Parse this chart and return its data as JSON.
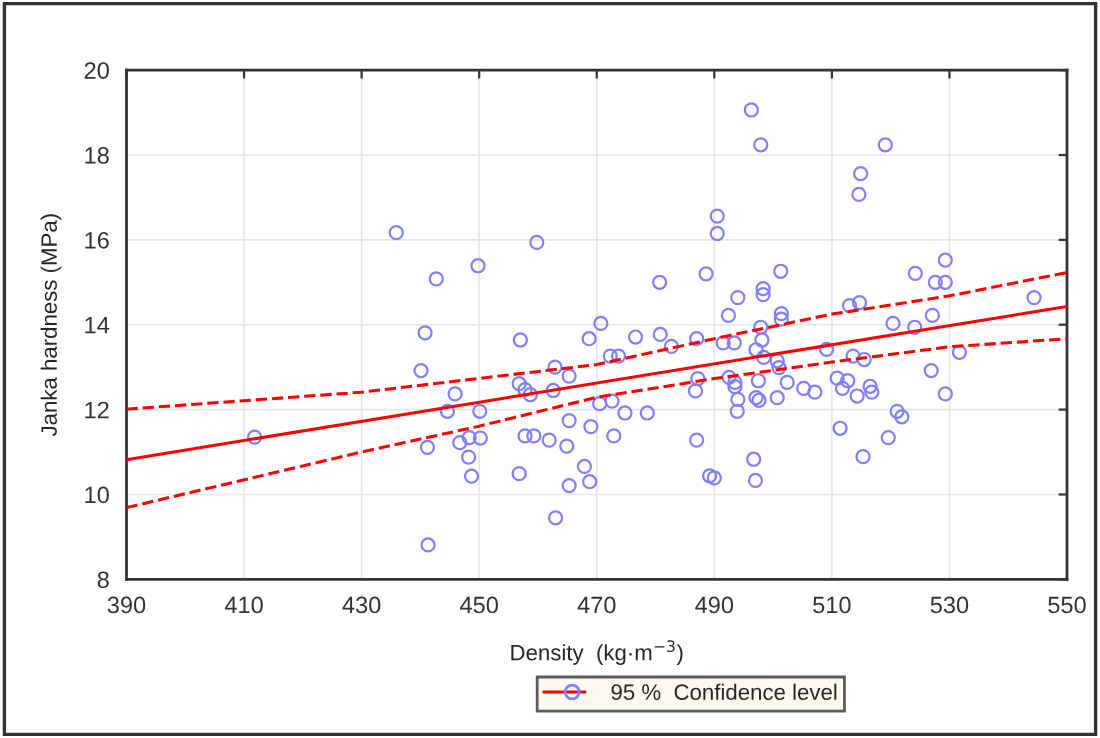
{
  "chart_data": {
    "type": "scatter",
    "xlabel": "Density  (kg·m$^{−3}$)",
    "ylabel": "Janka hardness (MPa)",
    "xlim": [
      390,
      550
    ],
    "xticks": [
      390,
      410,
      430,
      450,
      470,
      490,
      510,
      530,
      550
    ],
    "ylim": [
      8,
      20
    ],
    "yticks": [
      8,
      10,
      12,
      14,
      16,
      18,
      20
    ],
    "grid": true,
    "legend": "bottom",
    "series": [
      {
        "color": "#8080ff",
        "marker": "circle",
        "x": [
          435.9,
          459.8,
          449.8,
          442.7,
          440.8,
          457.0,
          440.1,
          462.9,
          465.3,
          468.7,
          456.8,
          457.8,
          458.7,
          462.6,
          445.9,
          444.6,
          450.1,
          411.8,
          441.2,
          446.7,
          448.3,
          450.2,
          457.8,
          459.3,
          461.9,
          464.9,
          465.3,
          469.0,
          448.2,
          448.7,
          456.8,
          467.9,
          465.3,
          463.0,
          441.3,
          496.3,
          497.9,
          519.1,
          514.9,
          514.6,
          490.5,
          490.5,
          488.6,
          480.7,
          501.3,
          494.0,
          498.3,
          498.3,
          529.3,
          524.2,
          527.6,
          529.3,
          544.4,
          513.0,
          514.7,
          492.4,
          501.4,
          501.4,
          527.1,
          520.4,
          524.1,
          470.7,
          476.6,
          480.8,
          482.7,
          487.0,
          491.5,
          493.4,
          497.9,
          498.1,
          497.1,
          472.3,
          473.7,
          498.4,
          500.7,
          501.0,
          509.1,
          513.6,
          515.5,
          531.7,
          526.9,
          487.2,
          486.8,
          492.5,
          493.5,
          493.5,
          497.5,
          502.4,
          505.2,
          507.1,
          510.9,
          512.7,
          511.8,
          516.5,
          516.8,
          514.3,
          529.3,
          470.5,
          472.6,
          494.0,
          497.1,
          497.6,
          500.7,
          474.8,
          478.6,
          493.9,
          472.9,
          487.0,
          511.4,
          521.1,
          521.9,
          519.6,
          515.3,
          468.8,
          489.2,
          490.0,
          496.7,
          497.0
        ],
        "values": [
          16.17,
          15.94,
          15.39,
          15.08,
          13.81,
          13.64,
          12.92,
          13.0,
          12.79,
          13.67,
          12.61,
          12.47,
          12.35,
          12.45,
          12.37,
          11.96,
          11.96,
          11.35,
          11.11,
          11.22,
          11.34,
          11.33,
          11.38,
          11.38,
          11.28,
          11.14,
          11.74,
          11.6,
          10.88,
          10.43,
          10.49,
          10.66,
          10.21,
          9.45,
          8.81,
          19.06,
          18.24,
          18.24,
          17.56,
          17.07,
          16.56,
          16.15,
          15.2,
          15.0,
          15.26,
          14.64,
          14.85,
          14.71,
          15.52,
          15.21,
          15.0,
          15.0,
          14.64,
          14.45,
          14.52,
          14.22,
          14.26,
          14.13,
          14.22,
          14.03,
          13.94,
          14.03,
          13.71,
          13.77,
          13.49,
          13.67,
          13.57,
          13.57,
          13.94,
          13.64,
          13.41,
          13.26,
          13.26,
          13.23,
          13.15,
          12.99,
          13.42,
          13.26,
          13.18,
          13.35,
          12.92,
          12.73,
          12.44,
          12.76,
          12.64,
          12.54,
          12.68,
          12.64,
          12.5,
          12.41,
          12.74,
          12.68,
          12.5,
          12.55,
          12.41,
          12.32,
          12.37,
          12.14,
          12.2,
          12.24,
          12.28,
          12.22,
          12.28,
          11.92,
          11.92,
          11.96,
          11.38,
          11.28,
          11.56,
          11.96,
          11.83,
          11.34,
          10.89,
          10.3,
          10.44,
          10.39,
          10.83,
          10.33
        ]
      },
      {
        "type": "line",
        "color": "#ff0000",
        "line_style": "solid",
        "x": [
          390,
          550
        ],
        "values": [
          10.82,
          14.43
        ]
      },
      {
        "type": "line",
        "color": "#ff0000",
        "line_style": "dashed",
        "name": "95 %  Confidence level",
        "x": [
          390,
          430,
          470,
          490,
          510,
          530,
          550
        ],
        "values": [
          12.01,
          12.41,
          13.06,
          13.67,
          14.25,
          14.68,
          15.23
        ]
      },
      {
        "type": "line",
        "color": "#ff0000",
        "line_style": "dashed",
        "x": [
          390,
          430,
          450,
          470,
          490,
          510,
          530,
          550
        ],
        "values": [
          9.69,
          11.0,
          11.61,
          12.29,
          12.73,
          13.12,
          13.48,
          13.67
        ]
      }
    ]
  }
}
